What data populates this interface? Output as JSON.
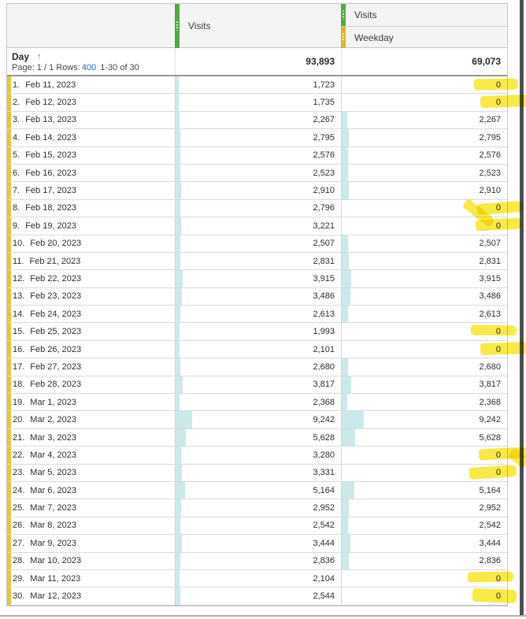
{
  "header": {
    "col_visits": {
      "label": "Visits"
    },
    "col_breakdown": {
      "top_label": "Visits",
      "bottom_label": "Weekday"
    }
  },
  "summary": {
    "dimension_label": "Day",
    "sort_icon": "↑",
    "page_label": "Page: 1 / 1",
    "rows_label": "Rows:",
    "rows_value": "400",
    "range_label": "1-30 of 30",
    "total_visits": "93,893",
    "total_weekday": "69,073"
  },
  "totals_num": {
    "visits": 93893,
    "weekday": 69073
  },
  "colors": {
    "metric_green": "#53a944",
    "metric_yellow": "#dfb624",
    "row_marker_gold": "#e8c63d",
    "bar_cyan": "#cbe9ea",
    "highlight_yellow": "#f6e312",
    "link_blue": "#3366cc",
    "header_gray": "#f4f4f4"
  },
  "rows": [
    {
      "index": "1.",
      "date": "Feb 11, 2023",
      "visits": "1,723",
      "visits_num": 1723,
      "weekday": "0",
      "weekday_num": 0,
      "highlight": true
    },
    {
      "index": "2.",
      "date": "Feb 12, 2023",
      "visits": "1,735",
      "visits_num": 1735,
      "weekday": "0",
      "weekday_num": 0,
      "highlight": true
    },
    {
      "index": "3.",
      "date": "Feb 13, 2023",
      "visits": "2,267",
      "visits_num": 2267,
      "weekday": "2,267",
      "weekday_num": 2267,
      "highlight": false
    },
    {
      "index": "4.",
      "date": "Feb 14, 2023",
      "visits": "2,795",
      "visits_num": 2795,
      "weekday": "2,795",
      "weekday_num": 2795,
      "highlight": false
    },
    {
      "index": "5.",
      "date": "Feb 15, 2023",
      "visits": "2,576",
      "visits_num": 2576,
      "weekday": "2,576",
      "weekday_num": 2576,
      "highlight": false
    },
    {
      "index": "6.",
      "date": "Feb 16, 2023",
      "visits": "2,523",
      "visits_num": 2523,
      "weekday": "2,523",
      "weekday_num": 2523,
      "highlight": false
    },
    {
      "index": "7.",
      "date": "Feb 17, 2023",
      "visits": "2,910",
      "visits_num": 2910,
      "weekday": "2,910",
      "weekday_num": 2910,
      "highlight": false
    },
    {
      "index": "8.",
      "date": "Feb 18, 2023",
      "visits": "2,796",
      "visits_num": 2796,
      "weekday": "0",
      "weekday_num": 0,
      "highlight": true
    },
    {
      "index": "9.",
      "date": "Feb 19, 2023",
      "visits": "3,221",
      "visits_num": 3221,
      "weekday": "0",
      "weekday_num": 0,
      "highlight": true
    },
    {
      "index": "10.",
      "date": "Feb 20, 2023",
      "visits": "2,507",
      "visits_num": 2507,
      "weekday": "2,507",
      "weekday_num": 2507,
      "highlight": false
    },
    {
      "index": "11.",
      "date": "Feb 21, 2023",
      "visits": "2,831",
      "visits_num": 2831,
      "weekday": "2,831",
      "weekday_num": 2831,
      "highlight": false
    },
    {
      "index": "12.",
      "date": "Feb 22, 2023",
      "visits": "3,915",
      "visits_num": 3915,
      "weekday": "3,915",
      "weekday_num": 3915,
      "highlight": false
    },
    {
      "index": "13.",
      "date": "Feb 23, 2023",
      "visits": "3,486",
      "visits_num": 3486,
      "weekday": "3,486",
      "weekday_num": 3486,
      "highlight": false
    },
    {
      "index": "14.",
      "date": "Feb 24, 2023",
      "visits": "2,613",
      "visits_num": 2613,
      "weekday": "2,613",
      "weekday_num": 2613,
      "highlight": false
    },
    {
      "index": "15.",
      "date": "Feb 25, 2023",
      "visits": "1,993",
      "visits_num": 1993,
      "weekday": "0",
      "weekday_num": 0,
      "highlight": true
    },
    {
      "index": "16.",
      "date": "Feb 26, 2023",
      "visits": "2,101",
      "visits_num": 2101,
      "weekday": "0",
      "weekday_num": 0,
      "highlight": true
    },
    {
      "index": "17.",
      "date": "Feb 27, 2023",
      "visits": "2,680",
      "visits_num": 2680,
      "weekday": "2,680",
      "weekday_num": 2680,
      "highlight": false
    },
    {
      "index": "18.",
      "date": "Feb 28, 2023",
      "visits": "3,817",
      "visits_num": 3817,
      "weekday": "3,817",
      "weekday_num": 3817,
      "highlight": false
    },
    {
      "index": "19.",
      "date": "Mar 1, 2023",
      "visits": "2,368",
      "visits_num": 2368,
      "weekday": "2,368",
      "weekday_num": 2368,
      "highlight": false
    },
    {
      "index": "20.",
      "date": "Mar 2, 2023",
      "visits": "9,242",
      "visits_num": 9242,
      "weekday": "9,242",
      "weekday_num": 9242,
      "highlight": false
    },
    {
      "index": "21.",
      "date": "Mar 3, 2023",
      "visits": "5,628",
      "visits_num": 5628,
      "weekday": "5,628",
      "weekday_num": 5628,
      "highlight": false
    },
    {
      "index": "22.",
      "date": "Mar 4, 2023",
      "visits": "3,280",
      "visits_num": 3280,
      "weekday": "0",
      "weekday_num": 0,
      "highlight": true
    },
    {
      "index": "23.",
      "date": "Mar 5, 2023",
      "visits": "3,331",
      "visits_num": 3331,
      "weekday": "0",
      "weekday_num": 0,
      "highlight": true
    },
    {
      "index": "24.",
      "date": "Mar 6, 2023",
      "visits": "5,164",
      "visits_num": 5164,
      "weekday": "5,164",
      "weekday_num": 5164,
      "highlight": false
    },
    {
      "index": "25.",
      "date": "Mar 7, 2023",
      "visits": "2,952",
      "visits_num": 2952,
      "weekday": "2,952",
      "weekday_num": 2952,
      "highlight": false
    },
    {
      "index": "26.",
      "date": "Mar 8, 2023",
      "visits": "2,542",
      "visits_num": 2542,
      "weekday": "2,542",
      "weekday_num": 2542,
      "highlight": false
    },
    {
      "index": "27.",
      "date": "Mar 9, 2023",
      "visits": "3,444",
      "visits_num": 3444,
      "weekday": "3,444",
      "weekday_num": 3444,
      "highlight": false
    },
    {
      "index": "28.",
      "date": "Mar 10, 2023",
      "visits": "2,836",
      "visits_num": 2836,
      "weekday": "2,836",
      "weekday_num": 2836,
      "highlight": false
    },
    {
      "index": "29.",
      "date": "Mar 11, 2023",
      "visits": "2,104",
      "visits_num": 2104,
      "weekday": "0",
      "weekday_num": 0,
      "highlight": true
    },
    {
      "index": "30.",
      "date": "Mar 12, 2023",
      "visits": "2,544",
      "visits_num": 2544,
      "weekday": "0",
      "weekday_num": 0,
      "highlight": true
    }
  ]
}
